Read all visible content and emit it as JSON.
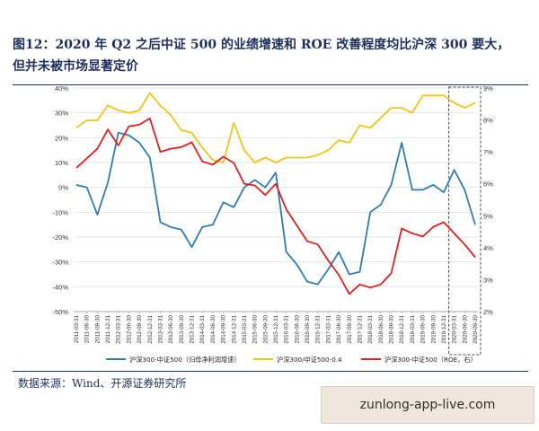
{
  "header": {
    "title_line1": "图12：2020 年 Q2 之后中证 500 的业绩增速和 ROE 改善程度均比沪深 300 要大，",
    "title_line2": "但并未被市场显著定价"
  },
  "footer": {
    "source": "数据来源：Wind、开源证券研究所",
    "watermark": "zunlong-app-live.com"
  },
  "chart_data": {
    "type": "line",
    "categories": [
      "2011-03-31",
      "2011-06-30",
      "2011-09-30",
      "2011-12-31",
      "2012-03-31",
      "2012-06-30",
      "2012-09-30",
      "2012-12-31",
      "2013-03-31",
      "2013-06-30",
      "2013-09-30",
      "2013-12-31",
      "2014-03-31",
      "2014-06-30",
      "2014-09-30",
      "2014-12-31",
      "2015-03-31",
      "2015-06-30",
      "2015-09-30",
      "2015-12-31",
      "2016-03-31",
      "2016-06-30",
      "2016-09-30",
      "2016-12-31",
      "2017-03-31",
      "2017-06-30",
      "2017-09-30",
      "2017-12-31",
      "2018-03-31",
      "2018-06-30",
      "2018-09-30",
      "2018-12-31",
      "2019-03-31",
      "2019-06-30",
      "2019-09-30",
      "2019-12-31",
      "2020-03-31",
      "2020-06-30",
      "2020-09-30"
    ],
    "y_left": {
      "min": -50,
      "max": 40,
      "step": 10,
      "ticks": [
        "40%",
        "30%",
        "20%",
        "10%",
        "0%",
        "-10%",
        "-20%",
        "-30%",
        "-40%",
        "-50%"
      ]
    },
    "y_right": {
      "min": 2,
      "max": 9,
      "step": 1,
      "ticks": [
        "9%",
        "8%",
        "7%",
        "6%",
        "5%",
        "4%",
        "3%",
        "2%"
      ]
    },
    "highlight": {
      "from": "2020-03-31",
      "to": "2020-09-30"
    },
    "series": [
      {
        "name": "沪深300-中证500（归母净利润增速）",
        "axis": "left",
        "color": "#2e7cb5",
        "values": [
          1,
          0,
          -11,
          2,
          22,
          21,
          18,
          12,
          -14,
          -16,
          -17,
          -24,
          -16,
          -15,
          -6,
          -8,
          0,
          3,
          0,
          6,
          -26,
          -31,
          -38,
          -39,
          -33,
          -26,
          -35,
          -34,
          -10,
          -7,
          1,
          18,
          -1,
          -1,
          1,
          -2,
          7,
          -1,
          -15
        ]
      },
      {
        "name": "沪深300/中证500-0.4",
        "axis": "left",
        "color": "#f0c419",
        "values": [
          24,
          27,
          27,
          33,
          31,
          30,
          31,
          38,
          33,
          29,
          23,
          22,
          16,
          11,
          10,
          26,
          15,
          10,
          12,
          10,
          12,
          12,
          12,
          13,
          15,
          19,
          18,
          25,
          24,
          28,
          32,
          32,
          30,
          37,
          37,
          37,
          34,
          32,
          34
        ]
      },
      {
        "name": "沪深300-中证500（ROE，右）",
        "axis": "right",
        "color": "#e02020",
        "values": [
          6.5,
          6.8,
          7.1,
          7.7,
          7.2,
          7.8,
          7.85,
          8.05,
          7.0,
          7.1,
          7.15,
          7.3,
          6.7,
          6.6,
          6.85,
          6.65,
          6.0,
          5.95,
          5.65,
          6.0,
          5.2,
          4.7,
          4.2,
          4.1,
          3.6,
          3.15,
          2.55,
          2.85,
          2.75,
          2.85,
          3.2,
          4.6,
          4.45,
          4.35,
          4.65,
          4.8,
          4.45,
          4.1,
          3.7
        ]
      }
    ]
  }
}
